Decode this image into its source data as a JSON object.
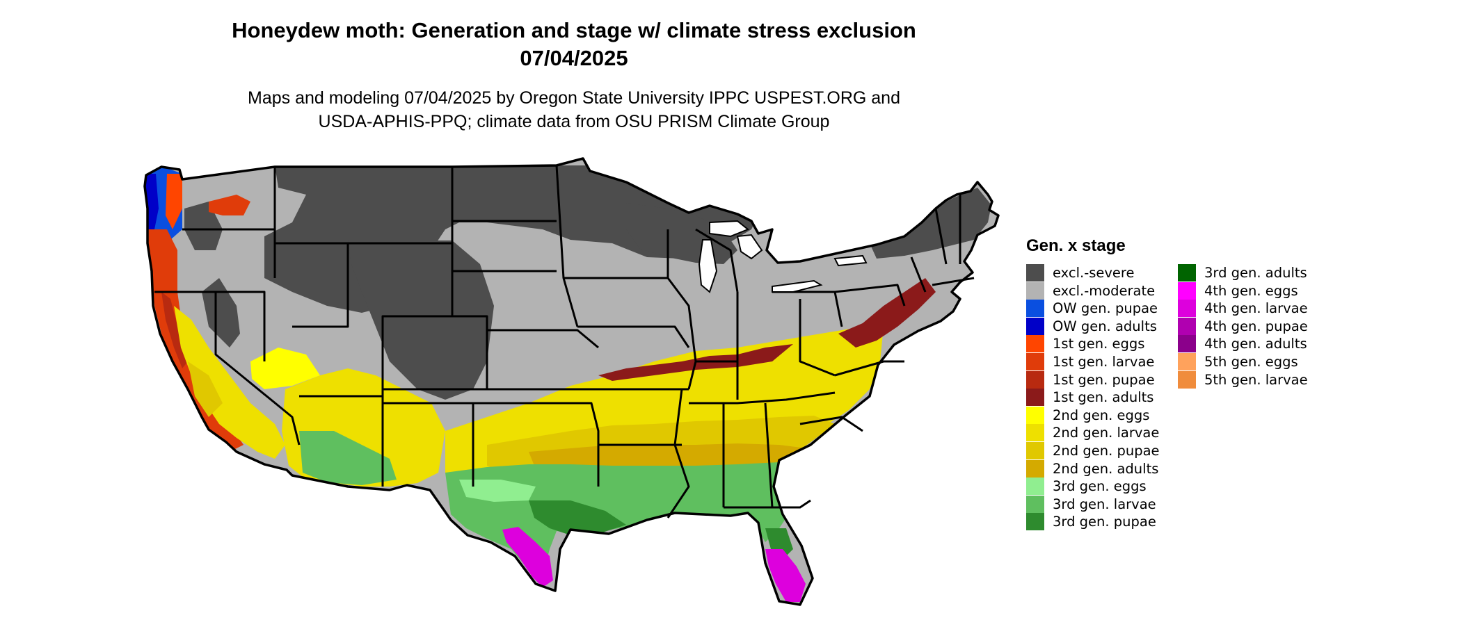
{
  "title": {
    "line1": "Honeydew moth: Generation and stage w/ climate stress exclusion",
    "line2": "07/04/2025"
  },
  "subtitle": {
    "line1": "Maps and modeling 07/04/2025 by Oregon State University IPPC USPEST.ORG and",
    "line2": "USDA-APHIS-PPQ; climate data from OSU PRISM Climate Group"
  },
  "legend": {
    "title": "Gen. x stage",
    "items": [
      {
        "label": "excl.-severe",
        "color": "#4d4d4d"
      },
      {
        "label": "excl.-moderate",
        "color": "#b3b3b3"
      },
      {
        "label": "OW gen. pupae",
        "color": "#0a4fe0"
      },
      {
        "label": "OW gen. adults",
        "color": "#0000c8"
      },
      {
        "label": "1st gen. eggs",
        "color": "#ff4500"
      },
      {
        "label": "1st gen. larvae",
        "color": "#e03c0a"
      },
      {
        "label": "1st gen. pupae",
        "color": "#b82a10"
      },
      {
        "label": "1st gen. adults",
        "color": "#8b1a1a"
      },
      {
        "label": "2nd gen. eggs",
        "color": "#ffff00"
      },
      {
        "label": "2nd gen. larvae",
        "color": "#eee000"
      },
      {
        "label": "2nd gen. pupae",
        "color": "#e0c800"
      },
      {
        "label": "2nd gen. adults",
        "color": "#d4aa00"
      },
      {
        "label": "3rd gen. eggs",
        "color": "#90ee90"
      },
      {
        "label": "3rd gen. larvae",
        "color": "#5fbf5f"
      },
      {
        "label": "3rd gen. pupae",
        "color": "#2e8b2e"
      },
      {
        "label": "3rd gen. adults",
        "color": "#006400"
      },
      {
        "label": "4th gen. eggs",
        "color": "#ff00ff"
      },
      {
        "label": "4th gen. larvae",
        "color": "#dd00dd"
      },
      {
        "label": "4th gen. pupae",
        "color": "#b000b0"
      },
      {
        "label": "4th gen. adults",
        "color": "#8b008b"
      },
      {
        "label": "5th gen. eggs",
        "color": "#ffa25c"
      },
      {
        "label": "5th gen. larvae",
        "color": "#f08c3c"
      }
    ]
  },
  "map": {
    "region": "contiguous United States",
    "boundary_color": "#000000"
  }
}
